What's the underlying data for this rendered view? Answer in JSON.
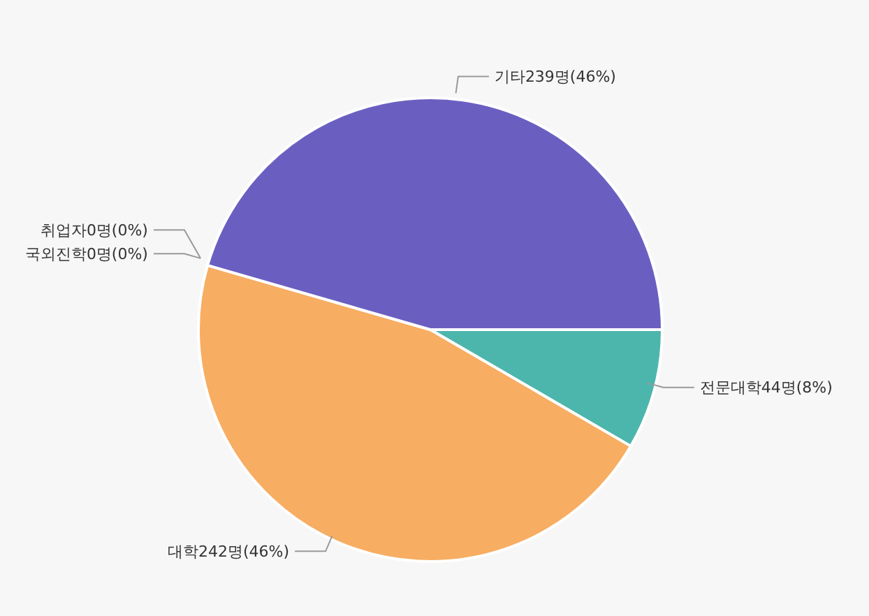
{
  "chart_data": {
    "type": "pie",
    "categories": [
      "전문대학",
      "대학",
      "국외진학",
      "취업자",
      "기타"
    ],
    "values": [
      44,
      242,
      0,
      0,
      239
    ],
    "value_labels": [
      "44명(8%)",
      "242명(46%)",
      "0명(0%)",
      "0명(0%)",
      "239명(46%)"
    ],
    "colors": [
      "#4db6ac",
      "#f7ad62",
      "#8fa8d8",
      "#e57373",
      "#6a5fc1"
    ]
  }
}
